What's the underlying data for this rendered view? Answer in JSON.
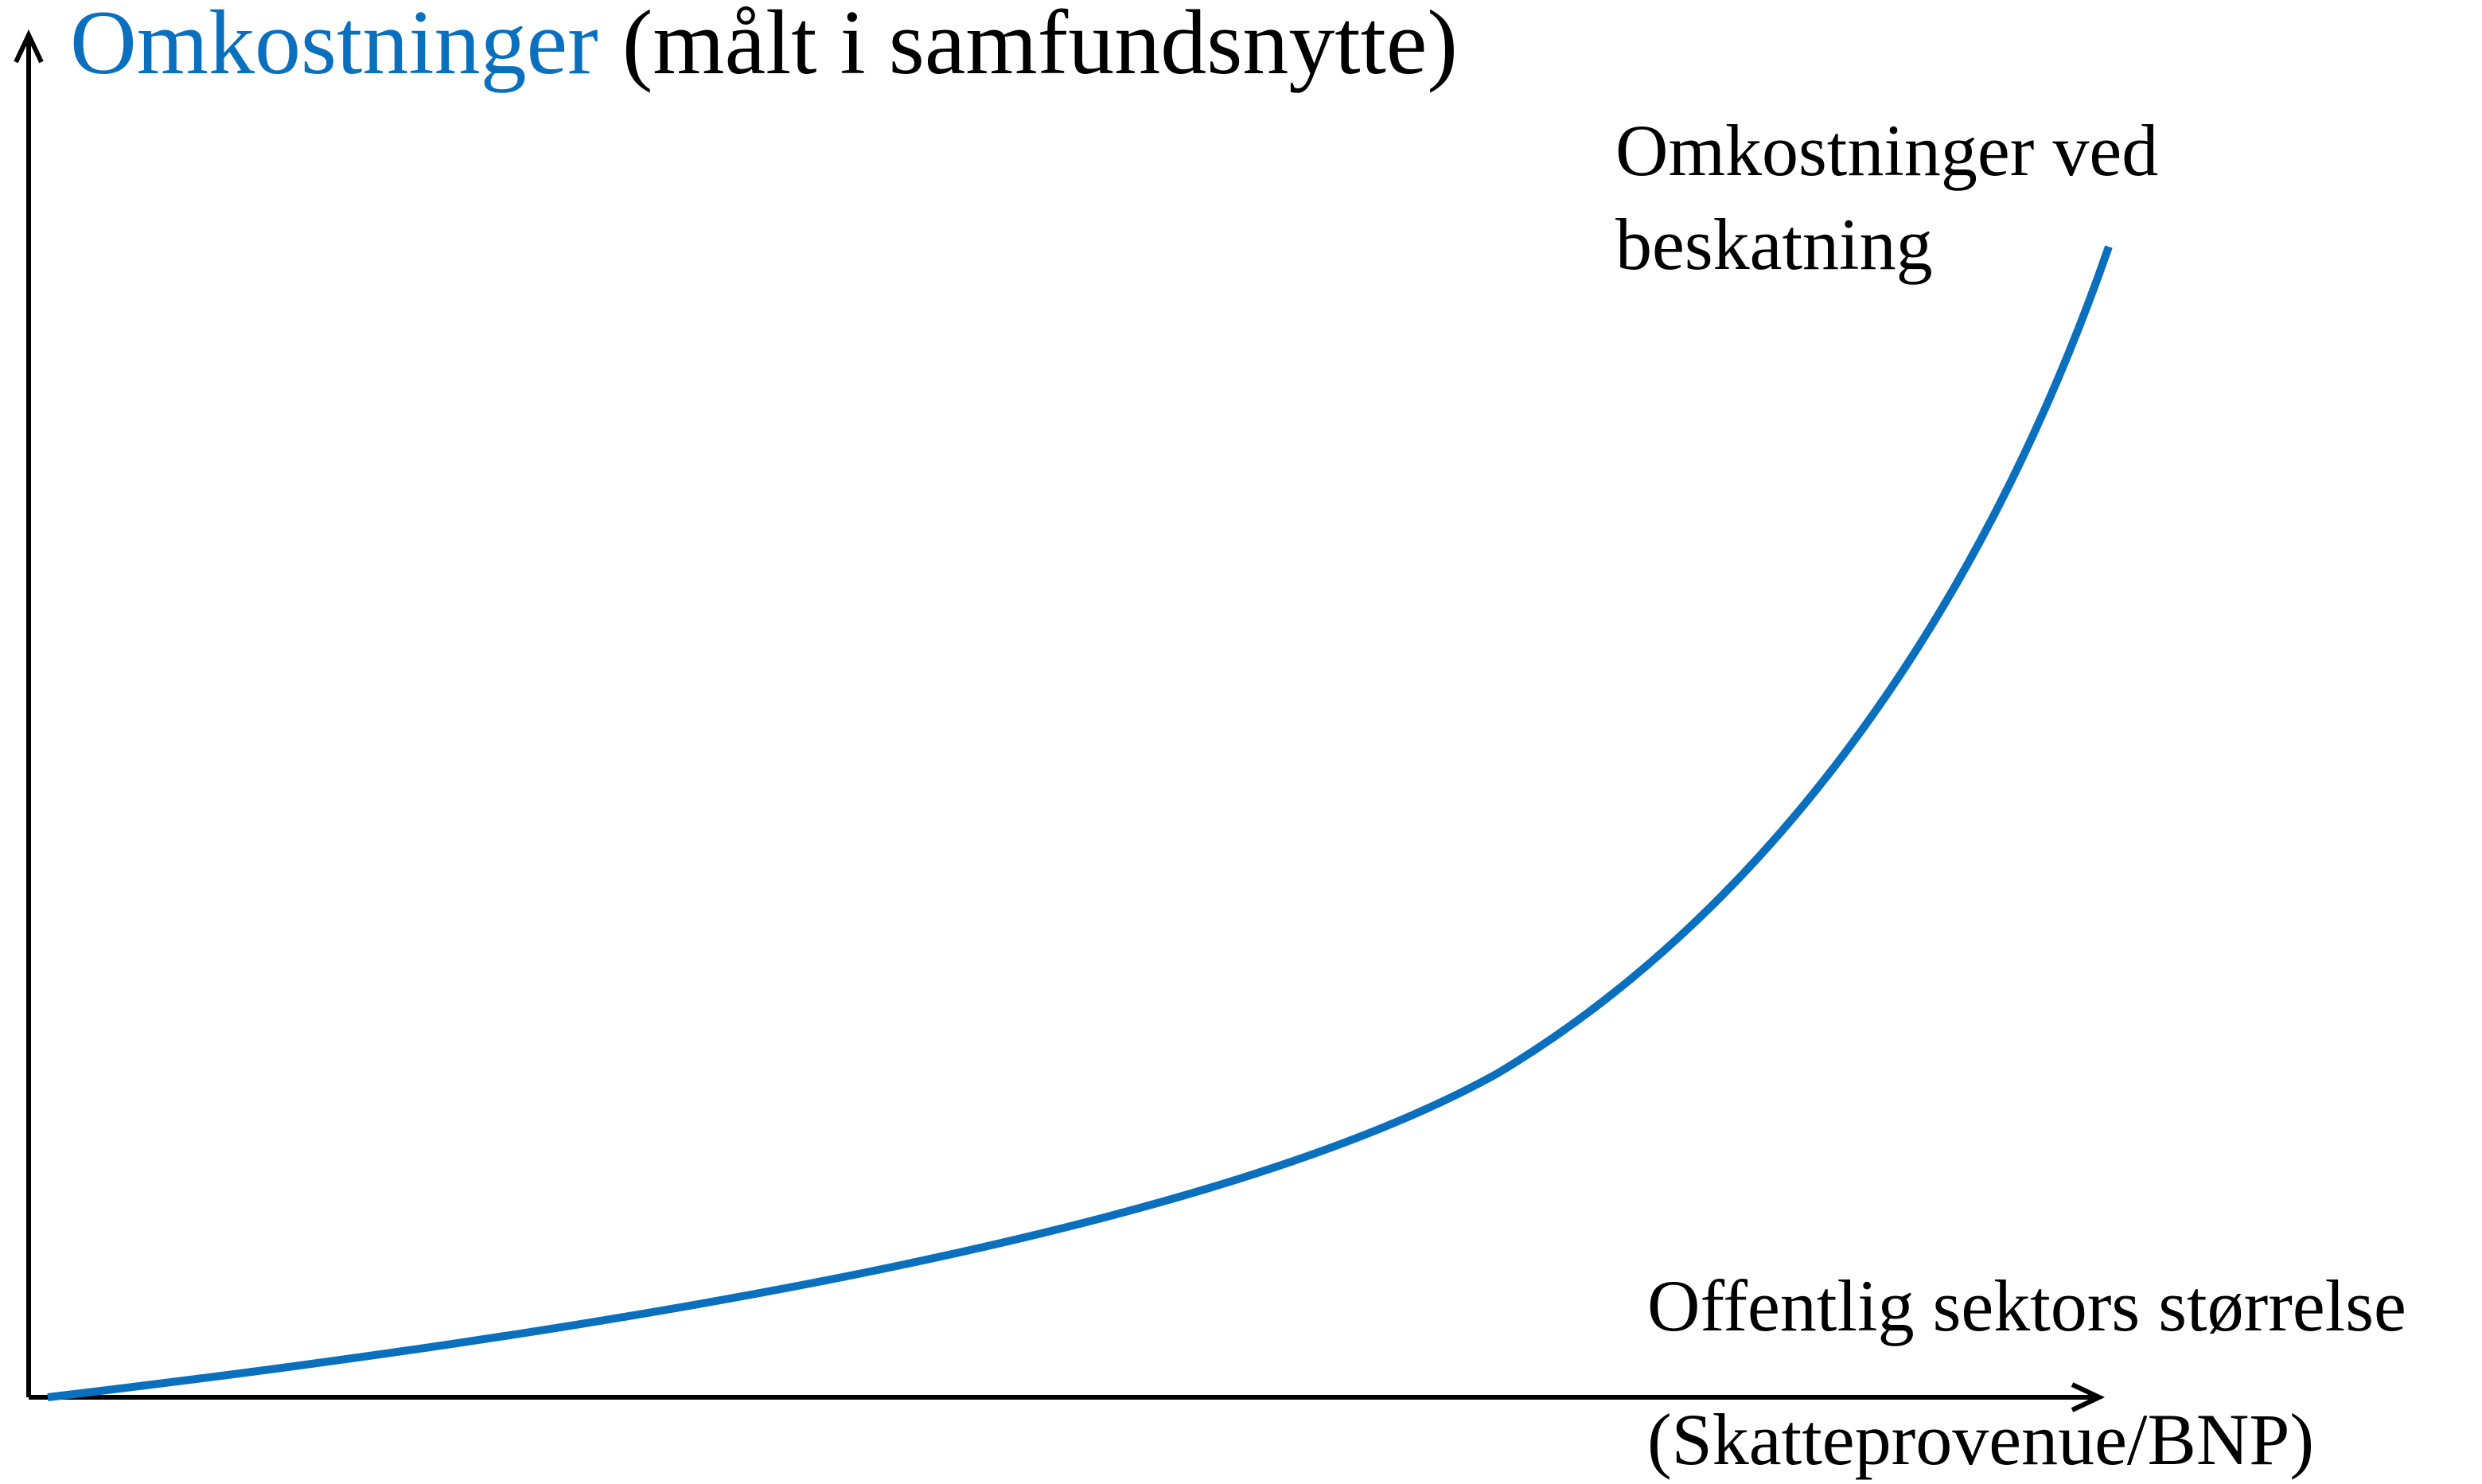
{
  "title": {
    "highlight": "Omkostninger",
    "rest": "(målt i samfundsnytte)"
  },
  "curve_label": [
    "Omkostninger ved",
    "beskatning"
  ],
  "x_axis_label": [
    "Offentlig sektors størrelse",
    "(Skatteprovenue/BNP)"
  ]
}
